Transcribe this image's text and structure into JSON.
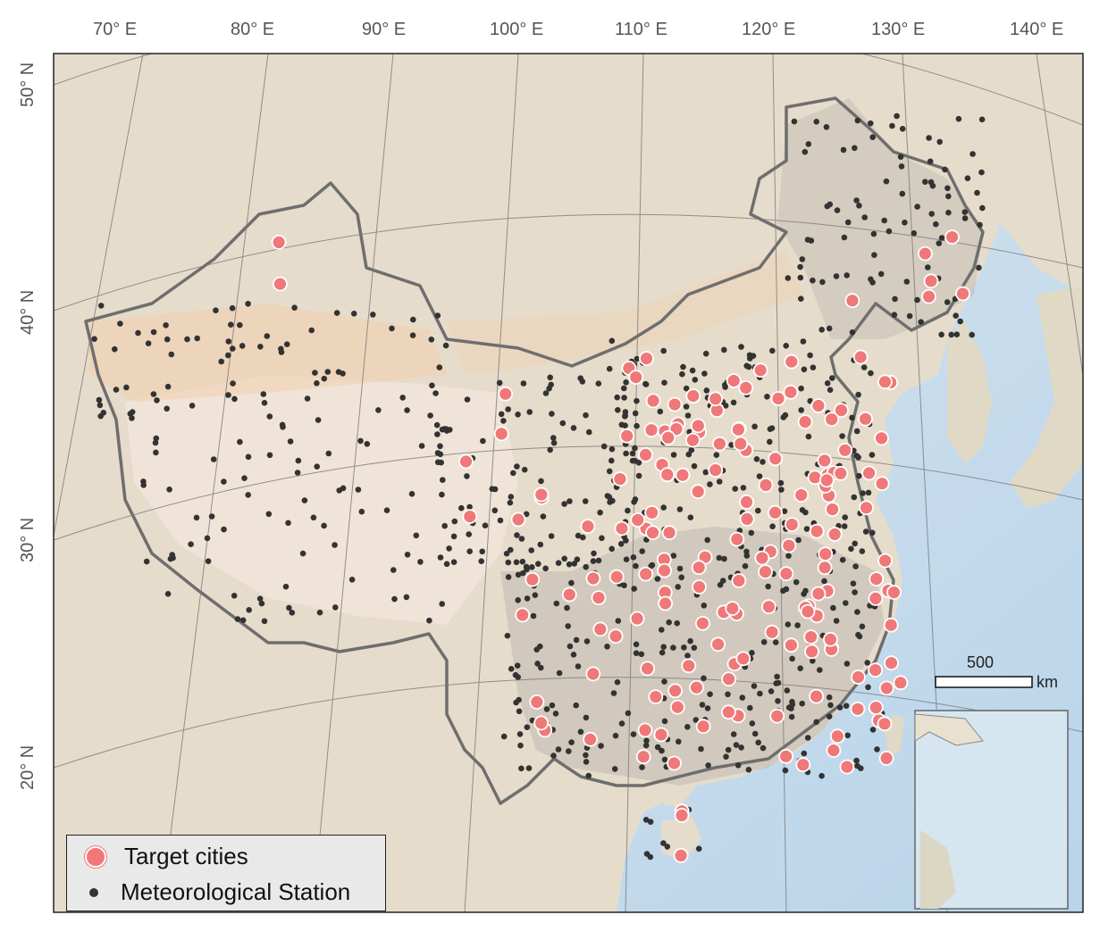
{
  "map": {
    "lon_ticks": [
      "70° E",
      "80° E",
      "90° E",
      "100° E",
      "110° E",
      "120° E",
      "130° E",
      "140° E"
    ],
    "lat_ticks": [
      "50° N",
      "40° N",
      "30° N",
      "20° N"
    ]
  },
  "legend": {
    "target_label": "Target cities",
    "station_label": "Meteorological Station"
  },
  "scalebar": {
    "value": "500",
    "unit": "km"
  },
  "colors": {
    "target_city": "#f07878",
    "station": "#333333",
    "border": "#777777",
    "land": "#eadcc9",
    "sea": "#cfe3ef"
  },
  "icons": [
    "target-city-marker",
    "station-marker"
  ]
}
